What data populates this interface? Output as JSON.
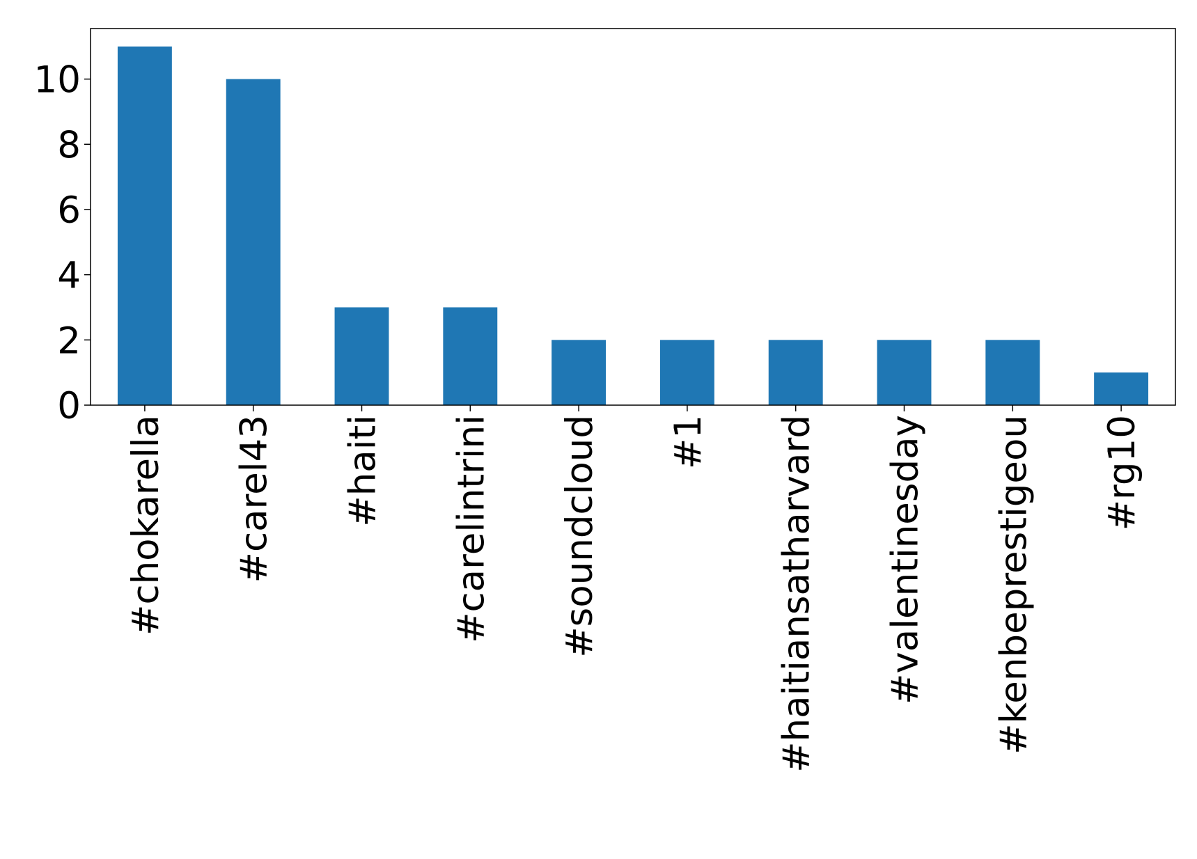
{
  "chart_data": {
    "type": "bar",
    "categories": [
      "#chokarella",
      "#carel43",
      "#haiti",
      "#carelintrini",
      "#soundcloud",
      "#1",
      "#haitiansatharvard",
      "#valentinesday",
      "#kenbeprestigeou",
      "#rg10"
    ],
    "values": [
      11,
      10,
      3,
      3,
      2,
      2,
      2,
      2,
      2,
      1
    ],
    "color": "#1f77b4",
    "ylim": [
      0,
      11.55
    ],
    "yticks": [
      0,
      2,
      4,
      6,
      8,
      10
    ],
    "grid": false
  }
}
